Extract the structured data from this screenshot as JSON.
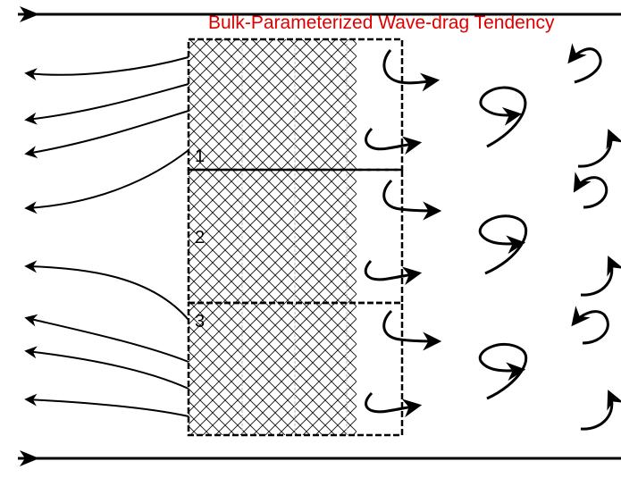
{
  "diagram": {
    "title": "Bulk-Parameterized Wave-drag Tendency",
    "title_color": "#e00000",
    "line_color": "#000000",
    "blocks": [
      {
        "label": "1"
      },
      {
        "label": "2"
      },
      {
        "label": "3"
      }
    ],
    "icons": {
      "arrowhead": "arrowhead-icon",
      "eddy": "eddy-swirl-icon"
    }
  }
}
